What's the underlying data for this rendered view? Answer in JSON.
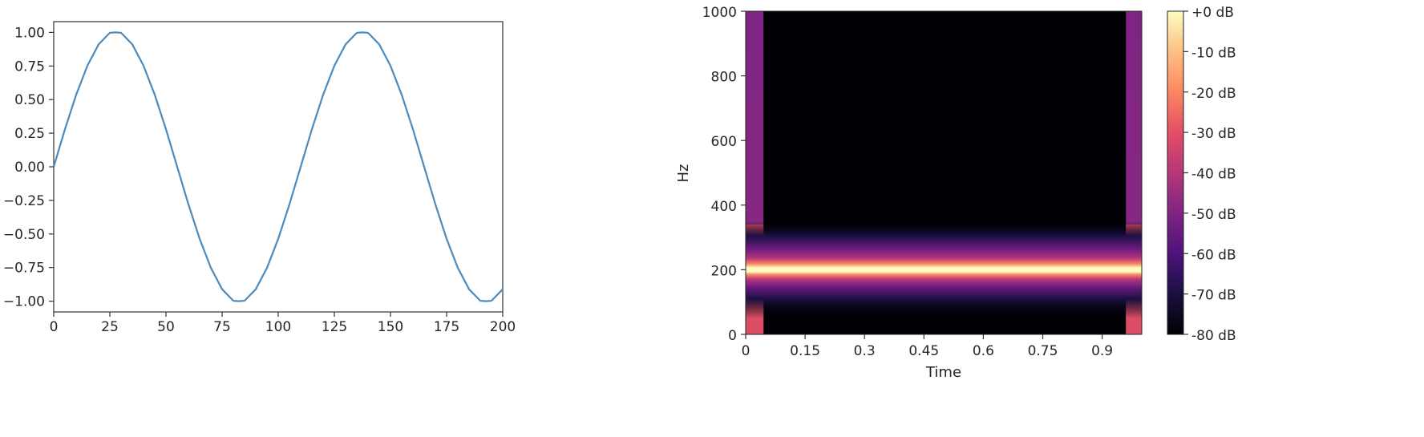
{
  "chart_data": [
    {
      "type": "line",
      "title": "",
      "xlabel": "",
      "ylabel": "",
      "xlim": [
        0,
        200
      ],
      "ylim": [
        -1.08,
        1.08
      ],
      "xticks": [
        0,
        25,
        50,
        75,
        100,
        125,
        150,
        175,
        200
      ],
      "xtick_labels": [
        "0",
        "25",
        "50",
        "75",
        "100",
        "125",
        "150",
        "175",
        "200"
      ],
      "yticks": [
        1.0,
        0.75,
        0.5,
        0.25,
        0.0,
        -0.25,
        -0.5,
        -0.75,
        -1.0
      ],
      "ytick_labels": [
        "1.00",
        "0.75",
        "0.50",
        "0.25",
        "0.00",
        "−0.25",
        "−0.50",
        "−0.75",
        "−1.00"
      ],
      "series": [
        {
          "color": "#4b8bbe",
          "x": [
            0,
            5,
            10,
            15,
            20,
            25,
            27.5,
            30,
            35,
            40,
            45,
            50,
            55,
            60,
            65,
            70,
            75,
            80,
            82.5,
            85,
            90,
            95,
            100,
            105,
            110,
            115,
            120,
            125,
            130,
            135,
            137.5,
            140,
            145,
            150,
            155,
            160,
            165,
            170,
            175,
            180,
            185,
            190,
            192.5,
            195,
            200
          ],
          "y": [
            0.0,
            0.279,
            0.536,
            0.752,
            0.911,
            0.997,
            1.0,
            0.997,
            0.911,
            0.752,
            0.536,
            0.279,
            0.0,
            -0.279,
            -0.536,
            -0.752,
            -0.911,
            -0.997,
            -1.0,
            -0.997,
            -0.911,
            -0.752,
            -0.536,
            -0.279,
            0.0,
            0.279,
            0.536,
            0.752,
            0.911,
            0.997,
            1.0,
            0.997,
            0.911,
            0.752,
            0.536,
            0.279,
            0.0,
            -0.279,
            -0.536,
            -0.752,
            -0.911,
            -0.997,
            -1.0,
            -0.997,
            -0.911
          ]
        }
      ],
      "grid": false
    },
    {
      "type": "heatmap",
      "title": "",
      "xlabel": "Time",
      "ylabel": "Hz",
      "xlim": [
        0,
        1.0
      ],
      "ylim": [
        0,
        1000
      ],
      "xticks": [
        0,
        0.15,
        0.3,
        0.45,
        0.6,
        0.75,
        0.9
      ],
      "xtick_labels": [
        "0",
        "0.15",
        "0.3",
        "0.45",
        "0.6",
        "0.75",
        "0.9"
      ],
      "yticks": [
        0,
        200,
        400,
        600,
        800,
        1000
      ],
      "ytick_labels": [
        "0",
        "200",
        "400",
        "600",
        "800",
        "1000"
      ],
      "colormap": "magma",
      "background_db": -80,
      "tone": {
        "frequency_hz": 200,
        "level_db": 0
      },
      "edge_columns": [
        {
          "time_from": 0.0,
          "time_to": 0.045,
          "level_db": -50
        },
        {
          "time_from": 0.96,
          "time_to": 1.0,
          "level_db": -50
        }
      ],
      "colorbar": {
        "ticks": [
          0,
          -10,
          -20,
          -30,
          -40,
          -50,
          -60,
          -70,
          -80
        ],
        "tick_labels": [
          "+0 dB",
          "-10 dB",
          "-20 dB",
          "-30 dB",
          "-40 dB",
          "-50 dB",
          "-60 dB",
          "-70 dB",
          "-80 dB"
        ],
        "range": [
          -80,
          0
        ]
      }
    }
  ]
}
